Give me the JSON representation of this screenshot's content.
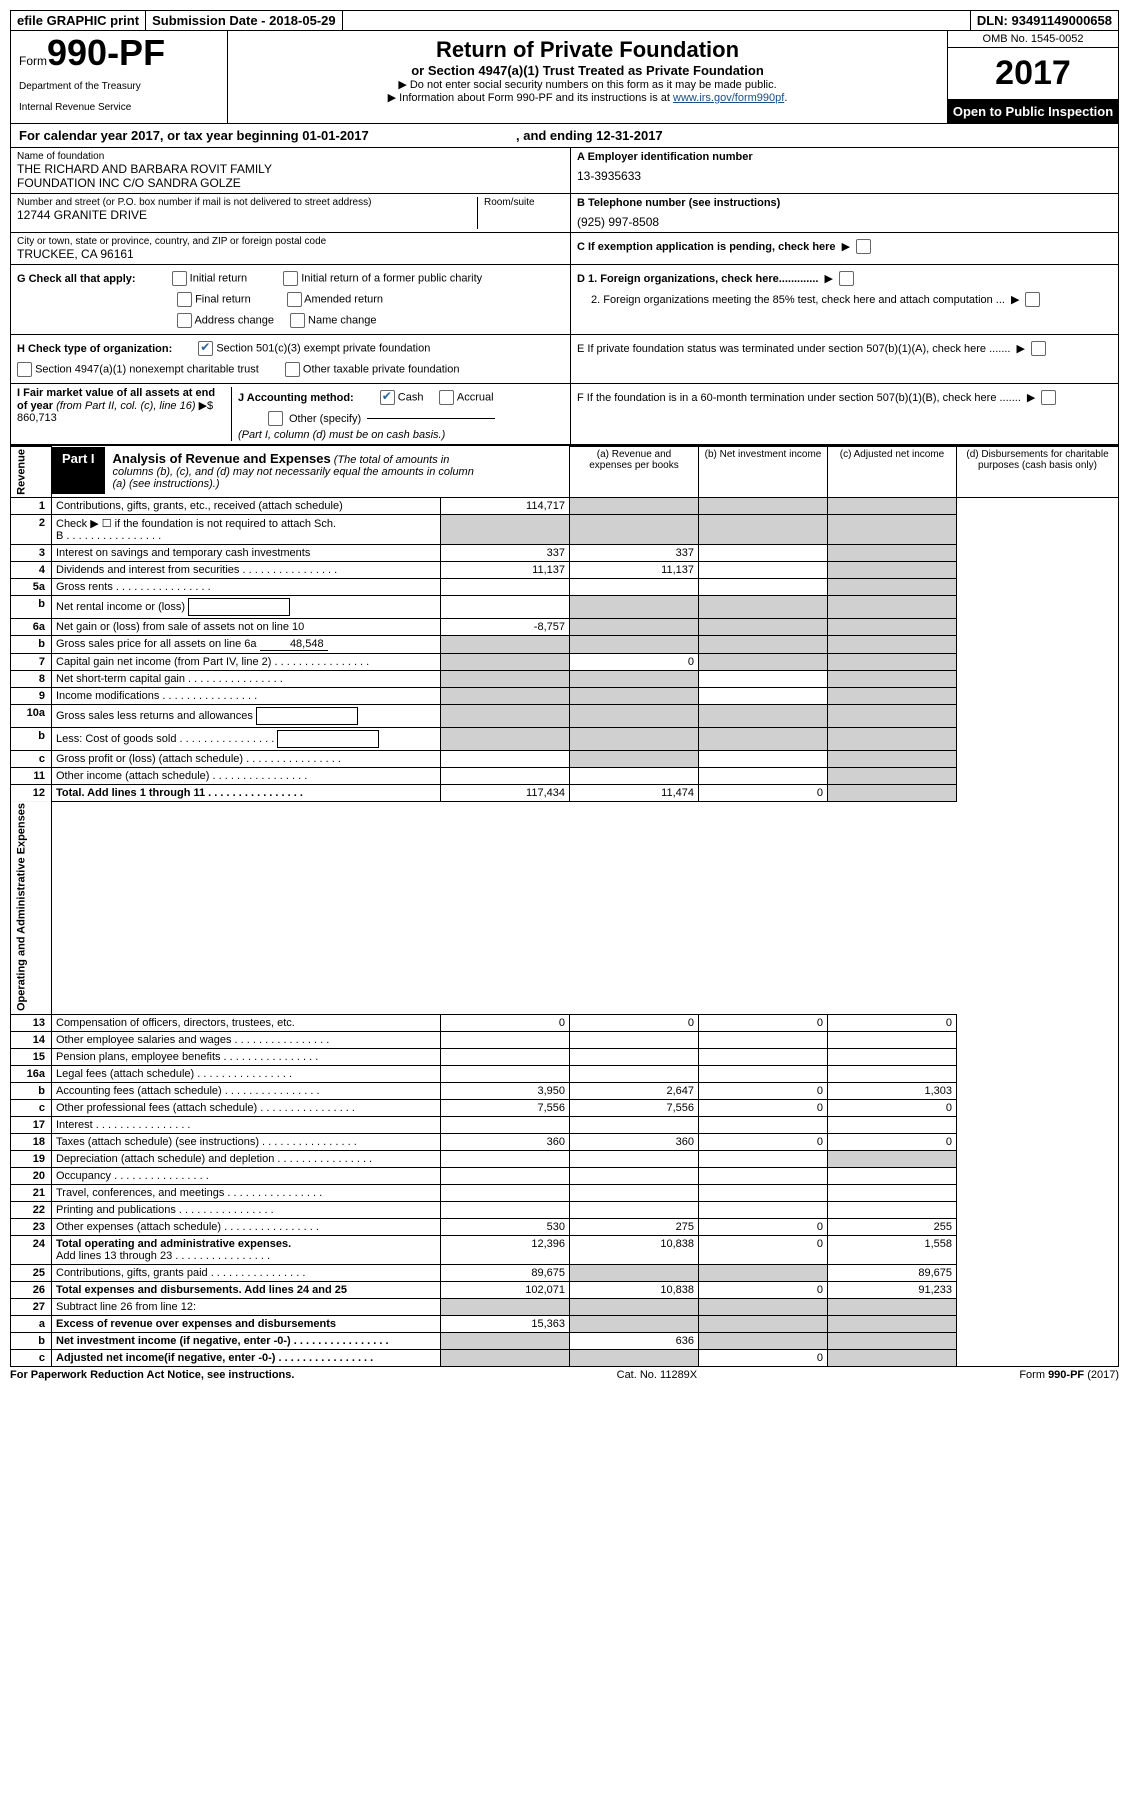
{
  "topbar": {
    "efile": "efile GRAPHIC print",
    "subdate_label": "Submission Date - ",
    "subdate": "2018-05-29",
    "dln_label": "DLN: ",
    "dln": "93491149000658"
  },
  "header": {
    "form_word": "Form",
    "form_num": "990-PF",
    "dept1": "Department of the Treasury",
    "dept2": "Internal Revenue Service",
    "title": "Return of Private Foundation",
    "sub": "or Section 4947(a)(1) Trust Treated as Private Foundation",
    "note1": "▶ Do not enter social security numbers on this form as it may be made public.",
    "note2_pre": "▶ Information about Form 990-PF and its instructions is at ",
    "note2_link": "www.irs.gov/form990pf",
    "note2_post": ".",
    "omb": "OMB No. 1545-0052",
    "year": "2017",
    "open": "Open to Public Inspection"
  },
  "calyear": {
    "pre": "For calendar year 2017, or tax year beginning ",
    "begin": "01-01-2017",
    "mid": " , and ending ",
    "end": "12-31-2017"
  },
  "info": {
    "name_label": "Name of foundation",
    "name1": "THE RICHARD AND BARBARA ROVIT FAMILY",
    "name2": "FOUNDATION INC C/O SANDRA GOLZE",
    "ein_label": "A Employer identification number",
    "ein": "13-3935633",
    "addr_label": "Number and street (or P.O. box number if mail is not delivered to street address)",
    "room_label": "Room/suite",
    "addr": "12744 GRANITE DRIVE",
    "tel_label": "B Telephone number (see instructions)",
    "tel": "(925) 997-8508",
    "city_label": "City or town, state or province, country, and ZIP or foreign postal code",
    "city": "TRUCKEE, CA  96161",
    "c_label": "C If exemption application is pending, check here",
    "g_label": "G Check all that apply:",
    "g_initial": "Initial return",
    "g_initial_former": "Initial return of a former public charity",
    "g_final": "Final return",
    "g_amended": "Amended return",
    "g_addr": "Address change",
    "g_name": "Name change",
    "d1": "D 1. Foreign organizations, check here.............",
    "d2": "2. Foreign organizations meeting the 85% test, check here and attach computation ...",
    "h_label": "H Check type of organization:",
    "h_501c3": "Section 501(c)(3) exempt private foundation",
    "h_4947": "Section 4947(a)(1) nonexempt charitable trust",
    "h_other": "Other taxable private foundation",
    "e_label": "E  If private foundation status was terminated under section 507(b)(1)(A), check here .......",
    "i_label": "I Fair market value of all assets at end of year ",
    "i_from": "(from Part II, col. (c), line 16)",
    "i_val": "▶$  860,713",
    "j_label": "J Accounting method:",
    "j_cash": "Cash",
    "j_accrual": "Accrual",
    "j_other": "Other (specify)",
    "j_note": "(Part I, column (d) must be on cash basis.)",
    "f_label": "F  If the foundation is in a 60-month termination under section 507(b)(1)(B), check here .......",
    "part1_tag": "Part I",
    "part1_title": "Analysis of Revenue and Expenses",
    "part1_sub": " (The total of amounts in columns (b), (c), and (d) may not necessarily equal the amounts in column (a) (see instructions).)",
    "col_a": "(a)   Revenue and expenses per books",
    "col_b": "(b)   Net investment income",
    "col_c": "(c)   Adjusted net income",
    "col_d": "(d)   Disbursements for charitable purposes (cash basis only)"
  },
  "sides": {
    "rev": "Revenue",
    "exp": "Operating and Administrative Expenses"
  },
  "rows": [
    {
      "n": "1",
      "t": "Contributions, gifts, grants, etc., received (attach schedule)",
      "a": "114,717",
      "b": "",
      "c": "",
      "d": "",
      "shade_d": true,
      "shade_c": true,
      "shade_b": true
    },
    {
      "n": "2",
      "t": "Check ▶ ☐ if the foundation is not required to attach Sch. B",
      "a": "",
      "b": "",
      "c": "",
      "d": "",
      "shade_all": true,
      "dots": true,
      "noamt": true
    },
    {
      "n": "3",
      "t": "Interest on savings and temporary cash investments",
      "a": "337",
      "b": "337",
      "c": "",
      "d": "",
      "shade_d": true
    },
    {
      "n": "4",
      "t": "Dividends and interest from securities",
      "a": "11,137",
      "b": "11,137",
      "c": "",
      "d": "",
      "shade_d": true,
      "dots": true
    },
    {
      "n": "5a",
      "t": "Gross rents",
      "a": "",
      "b": "",
      "c": "",
      "d": "",
      "shade_d": true,
      "dots": true
    },
    {
      "n": "b",
      "t": "Net rental income or (loss)",
      "a": "",
      "b": "",
      "c": "",
      "d": "",
      "shade_bcd": true,
      "box": true
    },
    {
      "n": "6a",
      "t": "Net gain or (loss) from sale of assets not on line 10",
      "a": "-8,757",
      "b": "",
      "c": "",
      "d": "",
      "shade_bcd": true
    },
    {
      "n": "b",
      "t_pre": "Gross sales price for all assets on line 6a",
      "box_val": "48,548",
      "a": "",
      "b": "",
      "c": "",
      "d": "",
      "shade_abcd": true
    },
    {
      "n": "7",
      "t": "Capital gain net income (from Part IV, line 2)",
      "a": "",
      "b": "0",
      "c": "",
      "d": "",
      "shade_a": true,
      "shade_cd": true,
      "dots": true
    },
    {
      "n": "8",
      "t": "Net short-term capital gain",
      "a": "",
      "b": "",
      "c": "",
      "d": "",
      "shade_ab": true,
      "shade_d": true,
      "dots": true
    },
    {
      "n": "9",
      "t": "Income modifications",
      "a": "",
      "b": "",
      "c": "",
      "d": "",
      "shade_ab": true,
      "shade_d": true,
      "dots": true
    },
    {
      "n": "10a",
      "t": "Gross sales less returns and allowances",
      "a": "",
      "b": "",
      "c": "",
      "d": "",
      "shade_abcd": true,
      "box": true
    },
    {
      "n": "b",
      "t": "Less: Cost of goods sold",
      "a": "",
      "b": "",
      "c": "",
      "d": "",
      "shade_abcd": true,
      "box": true,
      "dots": true
    },
    {
      "n": "c",
      "t": "Gross profit or (loss) (attach schedule)",
      "a": "",
      "b": "",
      "c": "",
      "d": "",
      "shade_b": true,
      "shade_d": true,
      "dots": true
    },
    {
      "n": "11",
      "t": "Other income (attach schedule)",
      "a": "",
      "b": "",
      "c": "",
      "d": "",
      "shade_d": true,
      "dots": true
    },
    {
      "n": "12",
      "t": "Total. Add lines 1 through 11",
      "a": "117,434",
      "b": "11,474",
      "c": "0",
      "d": "",
      "bold": true,
      "shade_d": true,
      "dots": true
    }
  ],
  "exp_rows": [
    {
      "n": "13",
      "t": "Compensation of officers, directors, trustees, etc.",
      "a": "0",
      "b": "0",
      "c": "0",
      "d": "0"
    },
    {
      "n": "14",
      "t": "Other employee salaries and wages",
      "a": "",
      "b": "",
      "c": "",
      "d": "",
      "dots": true
    },
    {
      "n": "15",
      "t": "Pension plans, employee benefits",
      "a": "",
      "b": "",
      "c": "",
      "d": "",
      "dots": true
    },
    {
      "n": "16a",
      "t": "Legal fees (attach schedule)",
      "a": "",
      "b": "",
      "c": "",
      "d": "",
      "dots": true
    },
    {
      "n": "b",
      "t": "Accounting fees (attach schedule)",
      "a": "3,950",
      "b": "2,647",
      "c": "0",
      "d": "1,303",
      "dots": true
    },
    {
      "n": "c",
      "t": "Other professional fees (attach schedule)",
      "a": "7,556",
      "b": "7,556",
      "c": "0",
      "d": "0",
      "dots": true
    },
    {
      "n": "17",
      "t": "Interest",
      "a": "",
      "b": "",
      "c": "",
      "d": "",
      "dots": true
    },
    {
      "n": "18",
      "t": "Taxes (attach schedule) (see instructions)",
      "a": "360",
      "b": "360",
      "c": "0",
      "d": "0",
      "dots": true
    },
    {
      "n": "19",
      "t": "Depreciation (attach schedule) and depletion",
      "a": "",
      "b": "",
      "c": "",
      "d": "",
      "shade_d": true,
      "dots": true
    },
    {
      "n": "20",
      "t": "Occupancy",
      "a": "",
      "b": "",
      "c": "",
      "d": "",
      "dots": true
    },
    {
      "n": "21",
      "t": "Travel, conferences, and meetings",
      "a": "",
      "b": "",
      "c": "",
      "d": "",
      "dots": true
    },
    {
      "n": "22",
      "t": "Printing and publications",
      "a": "",
      "b": "",
      "c": "",
      "d": "",
      "dots": true
    },
    {
      "n": "23",
      "t": "Other expenses (attach schedule)",
      "a": "530",
      "b": "275",
      "c": "0",
      "d": "255",
      "dots": true
    },
    {
      "n": "24",
      "t": "Total operating and administrative expenses.",
      "t2": "Add lines 13 through 23",
      "a": "12,396",
      "b": "10,838",
      "c": "0",
      "d": "1,558",
      "bold": true,
      "dots": true
    },
    {
      "n": "25",
      "t": "Contributions, gifts, grants paid",
      "a": "89,675",
      "b": "",
      "c": "",
      "d": "89,675",
      "shade_bc": true,
      "dots": true
    },
    {
      "n": "26",
      "t": "Total expenses and disbursements. Add lines 24 and 25",
      "a": "102,071",
      "b": "10,838",
      "c": "0",
      "d": "91,233",
      "bold": true
    }
  ],
  "sub_rows": [
    {
      "n": "27",
      "t": "Subtract line 26 from line 12:",
      "a": "",
      "b": "",
      "c": "",
      "d": "",
      "shade_abcd": true
    },
    {
      "n": "a",
      "t": "Excess of revenue over expenses and disbursements",
      "a": "15,363",
      "b": "",
      "c": "",
      "d": "",
      "bold": true,
      "shade_bcd": true
    },
    {
      "n": "b",
      "t": "Net investment income (if negative, enter -0-)",
      "a": "",
      "b": "636",
      "c": "",
      "d": "",
      "bold": true,
      "shade_a": true,
      "shade_cd": true,
      "dots": true
    },
    {
      "n": "c",
      "t": "Adjusted net income(if negative, enter -0-)",
      "a": "",
      "b": "",
      "c": "0",
      "d": "",
      "bold": true,
      "shade_ab": true,
      "shade_d": true,
      "dots": true
    }
  ],
  "footer": {
    "left": "For Paperwork Reduction Act Notice, see instructions.",
    "mid": "Cat. No. 11289X",
    "right": "Form 990-PF (2017)"
  }
}
